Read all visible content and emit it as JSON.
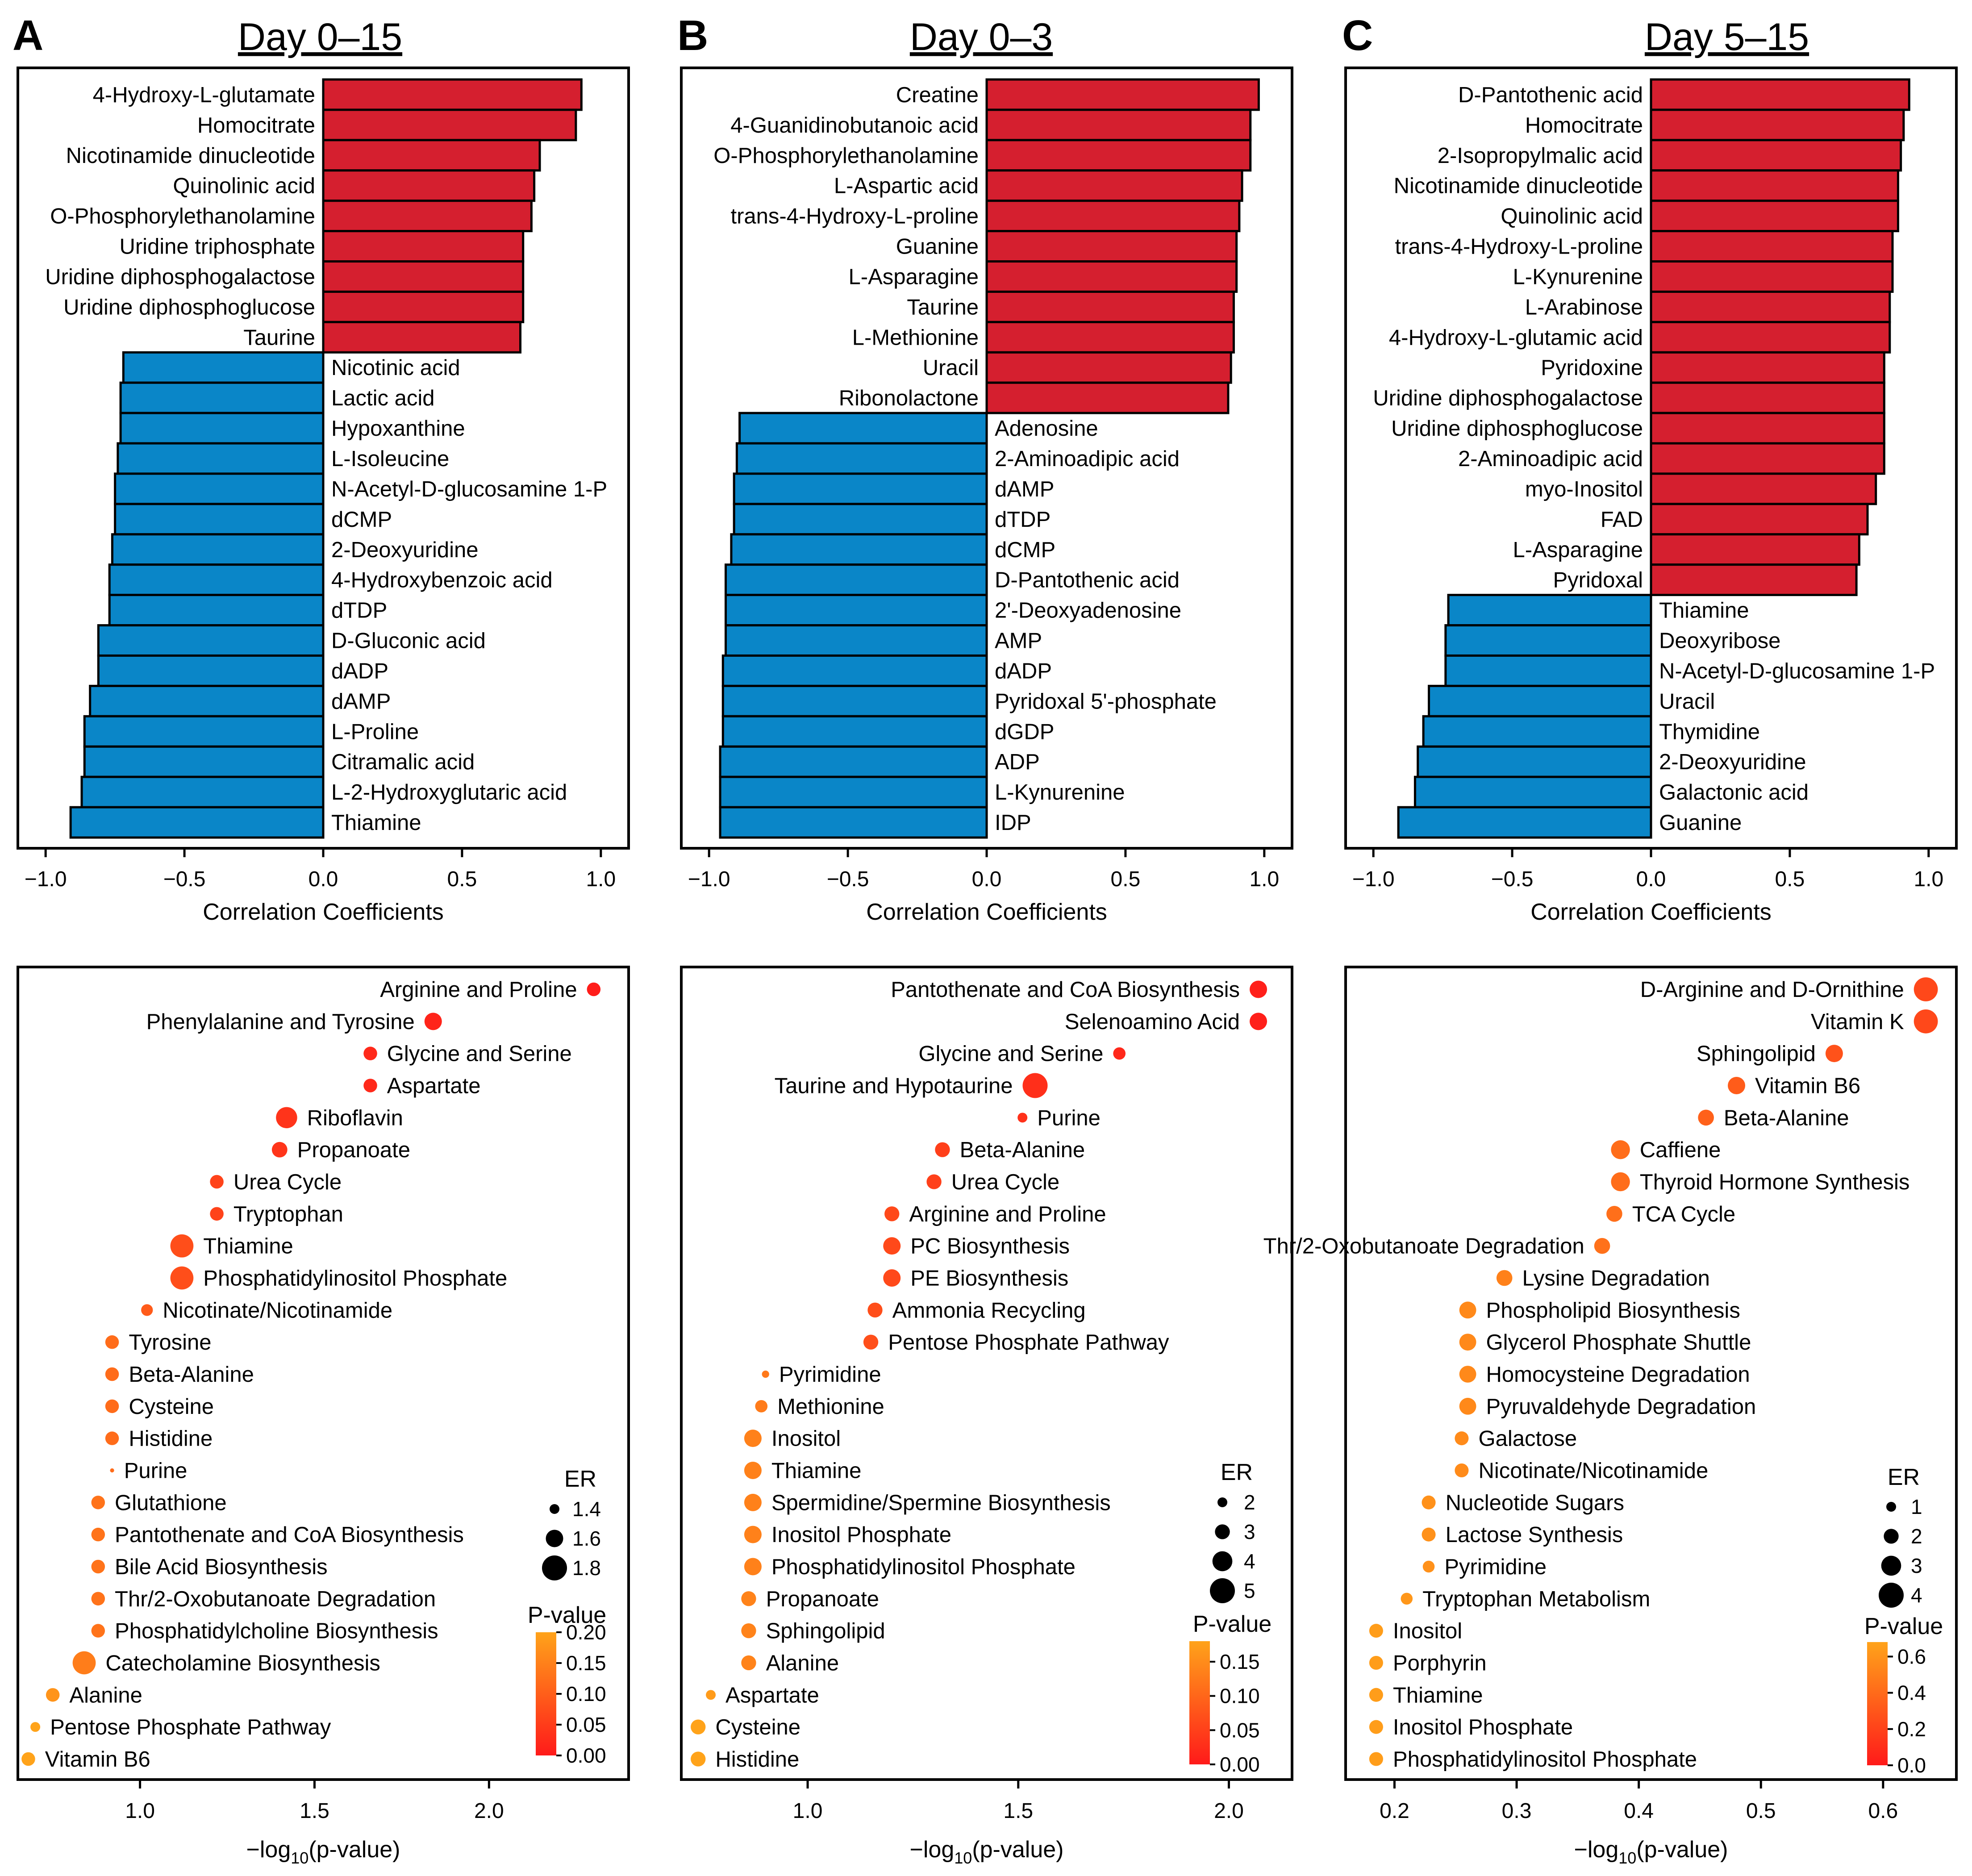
{
  "colors": {
    "positive": "#d51f2f",
    "negative": "#0a86c8",
    "pvalue_low": "#ff1a1a",
    "pvalue_high": "#ffa31a",
    "frame": "#000000"
  },
  "chart_data": [
    {
      "type": "bar",
      "panel": "A",
      "title": "Day 0–15",
      "xlabel": "Correlation Coefficients",
      "xlim": [
        -1.1,
        1.1
      ],
      "ticks": [
        -1.0,
        -0.5,
        0.0,
        0.5,
        1.0
      ],
      "tick_labels": [
        "−1.0",
        "−0.5",
        "0.0",
        "0.5",
        "1.0"
      ],
      "categories": [
        "4-Hydroxy-L-glutamate",
        "Homocitrate",
        "Nicotinamide dinucleotide",
        "Quinolinic acid",
        "O-Phosphorylethanolamine",
        "Uridine triphosphate",
        "Uridine diphosphogalactose",
        "Uridine diphosphoglucose",
        "Taurine",
        "Nicotinic acid",
        "Lactic acid",
        "Hypoxanthine",
        "L-Isoleucine",
        "N-Acetyl-D-glucosamine 1-P",
        "dCMP",
        "2-Deoxyuridine",
        "4-Hydroxybenzoic acid",
        "dTDP",
        "D-Gluconic acid",
        "dADP",
        "dAMP",
        "L-Proline",
        "Citramalic acid",
        "L-2-Hydroxyglutaric acid",
        "Thiamine"
      ],
      "values": [
        0.93,
        0.91,
        0.78,
        0.76,
        0.75,
        0.72,
        0.72,
        0.72,
        0.71,
        -0.72,
        -0.73,
        -0.73,
        -0.74,
        -0.75,
        -0.75,
        -0.76,
        -0.77,
        -0.77,
        -0.81,
        -0.81,
        -0.84,
        -0.86,
        -0.86,
        -0.87,
        -0.91
      ]
    },
    {
      "type": "bar",
      "panel": "B",
      "title": "Day 0–3",
      "xlabel": "Correlation Coefficients",
      "xlim": [
        -1.1,
        1.1
      ],
      "ticks": [
        -1.0,
        -0.5,
        0.0,
        0.5,
        1.0
      ],
      "tick_labels": [
        "−1.0",
        "−0.5",
        "0.0",
        "0.5",
        "1.0"
      ],
      "categories": [
        "Creatine",
        "4-Guanidinobutanoic acid",
        "O-Phosphorylethanolamine",
        "L-Aspartic acid",
        "trans-4-Hydroxy-L-proline",
        "Guanine",
        "L-Asparagine",
        "Taurine",
        "L-Methionine",
        "Uracil",
        "Ribonolactone",
        "Adenosine",
        "2-Aminoadipic acid",
        "dAMP",
        "dTDP",
        "dCMP",
        "D-Pantothenic acid",
        "2'-Deoxyadenosine",
        "AMP",
        "dADP",
        "Pyridoxal 5'-phosphate",
        "dGDP",
        "ADP",
        "L-Kynurenine",
        "IDP"
      ],
      "values": [
        0.98,
        0.95,
        0.95,
        0.92,
        0.91,
        0.9,
        0.9,
        0.89,
        0.89,
        0.88,
        0.87,
        -0.89,
        -0.9,
        -0.91,
        -0.91,
        -0.92,
        -0.94,
        -0.94,
        -0.94,
        -0.95,
        -0.95,
        -0.95,
        -0.96,
        -0.96,
        -0.96
      ]
    },
    {
      "type": "bar",
      "panel": "C",
      "title": "Day 5–15",
      "xlabel": "Correlation Coefficients",
      "xlim": [
        -1.1,
        1.1
      ],
      "ticks": [
        -1.0,
        -0.5,
        0.0,
        0.5,
        1.0
      ],
      "tick_labels": [
        "−1.0",
        "−0.5",
        "0.0",
        "0.5",
        "1.0"
      ],
      "categories": [
        "D-Pantothenic acid",
        "Homocitrate",
        "2-Isopropylmalic acid",
        "Nicotinamide dinucleotide",
        "Quinolinic acid",
        "trans-4-Hydroxy-L-proline",
        "L-Kynurenine",
        "L-Arabinose",
        "4-Hydroxy-L-glutamic acid",
        "Pyridoxine",
        "Uridine diphosphogalactose",
        "Uridine diphosphoglucose",
        "2-Aminoadipic acid",
        "myo-Inositol",
        "FAD",
        "L-Asparagine",
        "Pyridoxal",
        "Thiamine",
        "Deoxyribose",
        "N-Acetyl-D-glucosamine 1-P",
        "Uracil",
        "Thymidine",
        "2-Deoxyuridine",
        "Galactonic acid",
        "Guanine"
      ],
      "values": [
        0.93,
        0.91,
        0.9,
        0.89,
        0.89,
        0.87,
        0.87,
        0.86,
        0.86,
        0.84,
        0.84,
        0.84,
        0.84,
        0.81,
        0.78,
        0.75,
        0.74,
        -0.73,
        -0.74,
        -0.74,
        -0.8,
        -0.82,
        -0.84,
        -0.85,
        -0.91
      ]
    },
    {
      "type": "scatter",
      "panel": "A",
      "xlabel": "−log10(p-value)",
      "xlabel_main": "−log",
      "xlabel_sub": "10",
      "xlabel_tail": "(p-value)",
      "xlim": [
        0.65,
        2.4
      ],
      "ticks": [
        1.0,
        1.5,
        2.0
      ],
      "tick_labels": [
        "1.0",
        "1.5",
        "2.0"
      ],
      "pathways": [
        "Arginine and Proline",
        "Phenylalanine and Tyrosine",
        "Glycine and Serine",
        "Aspartate",
        "Riboflavin",
        "Propanoate",
        "Urea Cycle",
        "Tryptophan",
        "Thiamine",
        "Phosphatidylinositol Phosphate",
        "Nicotinate/Nicotinamide",
        "Tyrosine",
        "Beta-Alanine",
        "Cysteine",
        "Histidine",
        "Purine",
        "Glutathione",
        "Pantothenate and CoA Biosynthesis",
        "Bile Acid Biosynthesis",
        "Thr/2-Oxobutanoate Degradation",
        "Phosphatidylcholine Biosynthesis",
        "Catecholamine Biosynthesis",
        "Alanine",
        "Pentose Phosphate Pathway",
        "Vitamin B6"
      ],
      "x": [
        2.3,
        1.84,
        1.66,
        1.66,
        1.42,
        1.4,
        1.22,
        1.22,
        1.12,
        1.12,
        1.02,
        0.92,
        0.92,
        0.92,
        0.92,
        0.92,
        0.88,
        0.88,
        0.88,
        0.88,
        0.88,
        0.84,
        0.75,
        0.7,
        0.68
      ],
      "er": [
        1.5,
        1.6,
        1.5,
        1.5,
        1.7,
        1.55,
        1.5,
        1.5,
        1.75,
        1.75,
        1.45,
        1.5,
        1.5,
        1.5,
        1.5,
        1.25,
        1.5,
        1.5,
        1.5,
        1.5,
        1.5,
        1.75,
        1.5,
        1.4,
        1.5
      ],
      "pvalue": [
        0.005,
        0.015,
        0.022,
        0.022,
        0.038,
        0.04,
        0.06,
        0.06,
        0.076,
        0.076,
        0.095,
        0.12,
        0.12,
        0.12,
        0.12,
        0.12,
        0.13,
        0.13,
        0.13,
        0.13,
        0.13,
        0.145,
        0.178,
        0.2,
        0.21
      ],
      "legend_er": {
        "title": "ER",
        "values": [
          1.4,
          1.6,
          1.8
        ],
        "labels": [
          "1.4",
          "1.6",
          "1.8"
        ]
      },
      "legend_p": {
        "title": "P-value",
        "min": 0.0,
        "max": 0.2,
        "values": [
          0.2,
          0.15,
          0.1,
          0.05,
          0.0
        ],
        "labels": [
          "0.20",
          "0.15",
          "0.10",
          "0.05",
          "0.00"
        ]
      }
    },
    {
      "type": "scatter",
      "panel": "B",
      "xlabel": "−log10(p-value)",
      "xlabel_main": "−log",
      "xlabel_sub": "10",
      "xlabel_tail": "(p-value)",
      "xlim": [
        0.7,
        2.15
      ],
      "ticks": [
        1.0,
        1.5,
        2.0
      ],
      "tick_labels": [
        "1.0",
        "1.5",
        "2.0"
      ],
      "pathways": [
        "Pantothenate and CoA Biosynthesis",
        "Selenoamino Acid",
        "Glycine and Serine",
        "Taurine and Hypotaurine",
        "Purine",
        "Beta-Alanine",
        "Urea Cycle",
        "Arginine and Proline",
        "PC Biosynthesis",
        "PE Biosynthesis",
        "Ammonia Recycling",
        "Pentose Phosphate Pathway",
        "Pyrimidine",
        "Methionine",
        "Inositol",
        "Thiamine",
        "Spermidine/Spermine Biosynthesis",
        "Inositol Phosphate",
        "Phosphatidylinositol Phosphate",
        "Propanoate",
        "Sphingolipid",
        "Alanine",
        "Aspartate",
        "Cysteine",
        "Histidine"
      ],
      "x": [
        2.07,
        2.07,
        1.74,
        1.54,
        1.51,
        1.32,
        1.3,
        1.2,
        1.2,
        1.2,
        1.16,
        1.15,
        0.9,
        0.89,
        0.87,
        0.87,
        0.87,
        0.87,
        0.87,
        0.86,
        0.86,
        0.86,
        0.77,
        0.74,
        0.74
      ],
      "er": [
        3.5,
        3.5,
        2.5,
        5,
        2,
        3,
        3,
        3,
        3.5,
        3.5,
        3,
        3,
        1.5,
        2.5,
        3.5,
        3.5,
        3.5,
        3.5,
        3.5,
        3,
        3,
        3,
        2,
        3,
        3
      ],
      "pvalue": [
        0.008,
        0.008,
        0.018,
        0.028,
        0.03,
        0.048,
        0.05,
        0.062,
        0.062,
        0.062,
        0.068,
        0.07,
        0.125,
        0.128,
        0.135,
        0.135,
        0.135,
        0.135,
        0.135,
        0.138,
        0.138,
        0.138,
        0.17,
        0.18,
        0.18
      ],
      "legend_er": {
        "title": "ER",
        "values": [
          2,
          3,
          4,
          5
        ],
        "labels": [
          "2",
          "3",
          "4",
          "5"
        ]
      },
      "legend_p": {
        "title": "P-value",
        "min": 0.0,
        "max": 0.18,
        "values": [
          0.15,
          0.1,
          0.05,
          0.0
        ],
        "labels": [
          "0.15",
          "0.10",
          "0.05",
          "0.00"
        ]
      }
    },
    {
      "type": "scatter",
      "panel": "C",
      "xlabel": "−log10(p-value)",
      "xlabel_main": "−log",
      "xlabel_sub": "10",
      "xlabel_tail": "(p-value)",
      "xlim": [
        0.16,
        0.66
      ],
      "ticks": [
        0.2,
        0.3,
        0.4,
        0.5,
        0.6
      ],
      "tick_labels": [
        "0.2",
        "0.3",
        "0.4",
        "0.5",
        "0.6"
      ],
      "pathways": [
        "D-Arginine and D-Ornithine",
        "Vitamin K",
        "Sphingolipid",
        "Vitamin B6",
        "Beta-Alanine",
        "Caffiene",
        "Thyroid Hormone Synthesis",
        "TCA Cycle",
        "Thr/2-Oxobutanoate Degradation",
        "Lysine Degradation",
        "Phospholipid Biosynthesis",
        "Glycerol Phosphate Shuttle",
        "Homocysteine Degradation",
        "Pyruvaldehyde Degradation",
        "Galactose",
        "Nicotinate/Nicotinamide",
        "Nucleotide Sugars",
        "Lactose Synthesis",
        "Pyrimidine",
        "Tryptophan Metabolism",
        "Inositol",
        "Porphyrin",
        "Thiamine",
        "Inositol Phosphate",
        "Phosphatidylinositol Phosphate"
      ],
      "x": [
        0.635,
        0.635,
        0.56,
        0.48,
        0.455,
        0.385,
        0.385,
        0.38,
        0.37,
        0.29,
        0.26,
        0.26,
        0.26,
        0.26,
        0.255,
        0.255,
        0.228,
        0.228,
        0.228,
        0.21,
        0.185,
        0.185,
        0.185,
        0.185,
        0.185
      ],
      "er": [
        3.8,
        3.8,
        2.5,
        2.5,
        2.2,
        2.8,
        2.8,
        2.2,
        2.2,
        2.2,
        2.4,
        2.4,
        2.4,
        2.4,
        1.8,
        1.8,
        1.8,
        1.8,
        1.4,
        1.4,
        1.8,
        1.8,
        1.8,
        1.8,
        1.8
      ],
      "pvalue": [
        0.23,
        0.23,
        0.28,
        0.33,
        0.35,
        0.41,
        0.41,
        0.42,
        0.43,
        0.51,
        0.55,
        0.55,
        0.55,
        0.55,
        0.56,
        0.56,
        0.59,
        0.59,
        0.59,
        0.62,
        0.65,
        0.65,
        0.65,
        0.65,
        0.65
      ],
      "legend_er": {
        "title": "ER",
        "values": [
          1,
          2,
          3,
          4
        ],
        "labels": [
          "1",
          "2",
          "3",
          "4"
        ]
      },
      "legend_p": {
        "title": "P-value",
        "min": 0.0,
        "max": 0.68,
        "values": [
          0.6,
          0.4,
          0.2,
          0.0
        ],
        "labels": [
          "0.6",
          "0.4",
          "0.2",
          "0.0"
        ]
      }
    }
  ]
}
